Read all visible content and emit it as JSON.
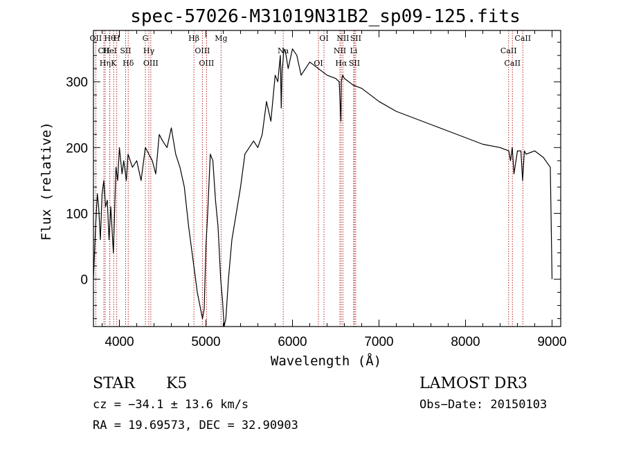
{
  "chart_data": {
    "type": "line",
    "title": "spec-57026-M31019N31B2_sp09-125.fits",
    "xlabel": "Wavelength (Å)",
    "ylabel": "Flux (relative)",
    "xlim": [
      3700,
      9100
    ],
    "ylim": [
      -72,
      378
    ],
    "xticks": [
      4000,
      5000,
      6000,
      7000,
      8000,
      9000
    ],
    "yticks": [
      0,
      100,
      200,
      300
    ],
    "grid": false,
    "series": [
      {
        "name": "flux",
        "x": [
          3700,
          3725,
          3745,
          3760,
          3780,
          3800,
          3820,
          3840,
          3860,
          3880,
          3900,
          3930,
          3960,
          3980,
          4000,
          4030,
          4050,
          4080,
          4100,
          4150,
          4200,
          4250,
          4300,
          4340,
          4380,
          4420,
          4460,
          4500,
          4550,
          4600,
          4650,
          4700,
          4750,
          4800,
          4840,
          4870,
          4900,
          4930,
          4960,
          4980,
          5000,
          5020,
          5050,
          5080,
          5110,
          5140,
          5170,
          5190,
          5210,
          5230,
          5260,
          5300,
          5350,
          5400,
          5450,
          5500,
          5550,
          5600,
          5650,
          5700,
          5750,
          5800,
          5830,
          5860,
          5870,
          5880,
          5890,
          5900,
          5920,
          5950,
          6000,
          6050,
          6100,
          6200,
          6300,
          6400,
          6500,
          6540,
          6560,
          6565,
          6580,
          6600,
          6700,
          6800,
          7000,
          7200,
          7400,
          7600,
          7800,
          8000,
          8200,
          8400,
          8500,
          8520,
          8540,
          8560,
          8600,
          8640,
          8660,
          8680,
          8700,
          8800,
          8900,
          8980,
          9000
        ],
        "y": [
          0,
          80,
          130,
          110,
          60,
          130,
          150,
          110,
          120,
          60,
          110,
          40,
          170,
          150,
          200,
          160,
          180,
          150,
          190,
          170,
          180,
          150,
          200,
          190,
          180,
          160,
          220,
          210,
          200,
          230,
          190,
          170,
          140,
          80,
          40,
          10,
          -20,
          -40,
          -60,
          -45,
          50,
          100,
          190,
          180,
          120,
          80,
          0,
          -30,
          -72,
          -60,
          0,
          60,
          100,
          140,
          190,
          200,
          210,
          200,
          220,
          270,
          240,
          310,
          300,
          340,
          260,
          320,
          330,
          350,
          345,
          320,
          350,
          340,
          310,
          330,
          320,
          310,
          305,
          300,
          240,
          300,
          310,
          305,
          295,
          290,
          270,
          255,
          245,
          235,
          225,
          215,
          205,
          200,
          195,
          180,
          200,
          160,
          195,
          195,
          150,
          195,
          190,
          195,
          185,
          170,
          0
        ]
      }
    ],
    "line_colors": {
      "lines": "#b22222",
      "data": "#000000"
    },
    "spectral_lines": [
      {
        "w": 3727,
        "label": "OII"
      },
      {
        "w": 3820,
        "label": "CII"
      },
      {
        "w": 3835,
        "label": "Hη"
      },
      {
        "w": 3889,
        "label": "Hθ"
      },
      {
        "w": 3889,
        "label": "HeI"
      },
      {
        "w": 3934,
        "label": "K"
      },
      {
        "w": 3969,
        "label": "H"
      },
      {
        "w": 4072,
        "label": "SII"
      },
      {
        "w": 4102,
        "label": "Hδ"
      },
      {
        "w": 4300,
        "label": "G"
      },
      {
        "w": 4340,
        "label": "Hγ"
      },
      {
        "w": 4363,
        "label": "OIII"
      },
      {
        "w": 4861,
        "label": "Hβ"
      },
      {
        "w": 4959,
        "label": "OIII"
      },
      {
        "w": 5007,
        "label": "OIII"
      },
      {
        "w": 5175,
        "label": "Mg"
      },
      {
        "w": 5893,
        "label": "Na"
      },
      {
        "w": 6300,
        "label": "OI"
      },
      {
        "w": 6364,
        "label": "OI"
      },
      {
        "w": 6548,
        "label": "NII"
      },
      {
        "w": 6563,
        "label": "Hα"
      },
      {
        "w": 6583,
        "label": "NII"
      },
      {
        "w": 6707,
        "label": "Li"
      },
      {
        "w": 6716,
        "label": "SII"
      },
      {
        "w": 6731,
        "label": "SII"
      },
      {
        "w": 8498,
        "label": "CaII"
      },
      {
        "w": 8542,
        "label": "CaII"
      },
      {
        "w": 8662,
        "label": "CaII"
      }
    ]
  },
  "info": {
    "class": "STAR",
    "subclass": "K5",
    "survey": "LAMOST DR3",
    "cz": "cz = −34.1 ± 13.6 km/s",
    "obs_date": "Obs−Date: 20150103",
    "radec": "RA =  19.69573, DEC =  32.90903"
  }
}
